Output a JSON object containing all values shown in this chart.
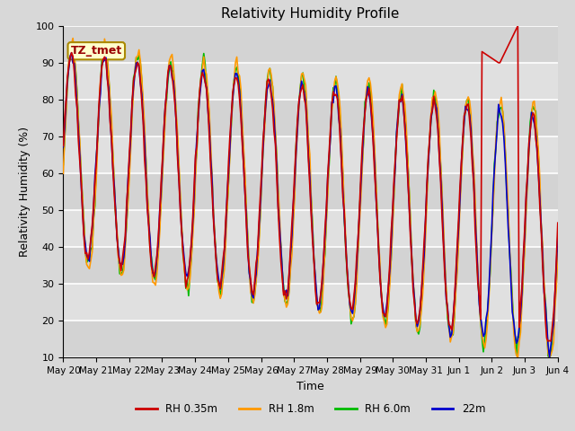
{
  "title": "Relativity Humidity Profile",
  "xlabel": "Time",
  "ylabel": "Relativity Humidity (%)",
  "ylim": [
    10,
    100
  ],
  "fig_bg_color": "#d8d8d8",
  "plot_bg_color": "#e0e0e0",
  "colors": {
    "RH 0.35m": "#cc0000",
    "RH 1.8m": "#ff9900",
    "RH 6.0m": "#00bb00",
    "22m": "#0000cc"
  },
  "legend_labels": [
    "RH 0.35m",
    "RH 1.8m",
    "RH 6.0m",
    "22m"
  ],
  "annotation_text": "TZ_tmet",
  "annotation_color": "#990000",
  "annotation_bg": "#ffffcc",
  "yticks": [
    10,
    20,
    30,
    40,
    50,
    60,
    70,
    80,
    90,
    100
  ],
  "grid_color": "#ffffff",
  "x_labels": [
    "May 20",
    "May 21",
    "May 22",
    "May 23",
    "May 24",
    "May 25",
    "May 26",
    "May 27",
    "May 28",
    "May 29",
    "May 30",
    "May 31",
    "Jun 1",
    "Jun 2",
    "Jun 3",
    "Jun 4"
  ]
}
